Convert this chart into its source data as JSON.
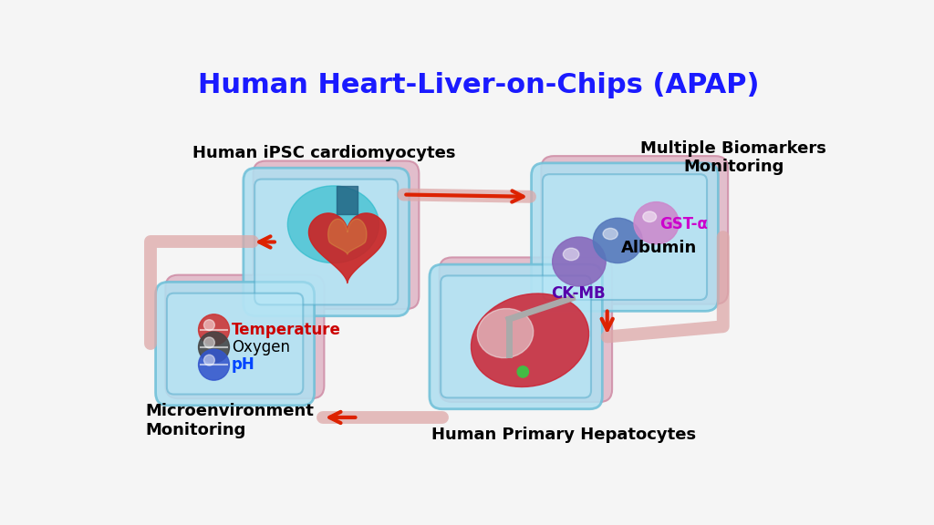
{
  "title": "Human Heart-Liver-on-Chips (APAP)",
  "title_color": "#1a1aff",
  "title_fontsize": 22,
  "background_color": "#f5f5f5",
  "chip_face": "#a8ddf0",
  "chip_edge": "#80c8e8",
  "chip_depth_face": "#c8a8b8",
  "chip_depth_edge": "#c090a8",
  "label_iPSC": "Human iPSC cardiomyocytes",
  "label_bio": "Multiple Biomarkers\nMonitoring",
  "label_micro": "Microenvironment\nMonitoring",
  "label_hep": "Human Primary Hepatocytes",
  "pipe_color": "#e8a0a0",
  "pipe_lw": 10,
  "arrow_color": "#dd2200",
  "arrow_lw": 2.5,
  "loop_lw": 8,
  "loop_color": "#dd3322"
}
